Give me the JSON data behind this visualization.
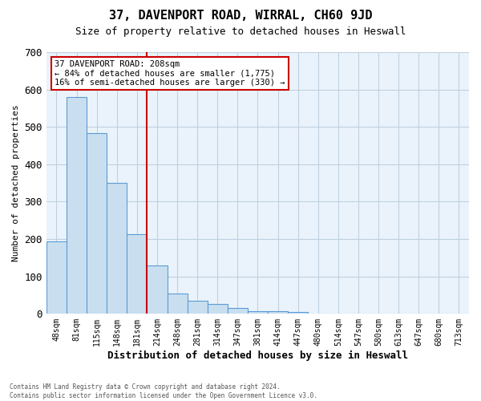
{
  "title": "37, DAVENPORT ROAD, WIRRAL, CH60 9JD",
  "subtitle": "Size of property relative to detached houses in Heswall",
  "xlabel": "Distribution of detached houses by size in Heswall",
  "ylabel": "Number of detached properties",
  "bin_labels": [
    "48sqm",
    "81sqm",
    "115sqm",
    "148sqm",
    "181sqm",
    "214sqm",
    "248sqm",
    "281sqm",
    "314sqm",
    "347sqm",
    "381sqm",
    "414sqm",
    "447sqm",
    "480sqm",
    "514sqm",
    "547sqm",
    "580sqm",
    "613sqm",
    "647sqm",
    "680sqm",
    "713sqm"
  ],
  "bar_heights": [
    193,
    580,
    483,
    350,
    213,
    130,
    55,
    35,
    27,
    15,
    8,
    8,
    5,
    0,
    0,
    0,
    0,
    0,
    0,
    0,
    0
  ],
  "bar_color": "#c9dff0",
  "bar_edge_color": "#5b9bd5",
  "annotation_text": "37 DAVENPORT ROAD: 208sqm\n← 84% of detached houses are smaller (1,775)\n16% of semi-detached houses are larger (330) →",
  "annotation_box_color": "#ffffff",
  "annotation_box_edge_color": "#cc0000",
  "vline_color": "#cc0000",
  "vline_x": 4.5,
  "ylim": [
    0,
    700
  ],
  "yticks": [
    0,
    100,
    200,
    300,
    400,
    500,
    600,
    700
  ],
  "grid_color": "#c0d0e0",
  "background_color": "#eaf3fb",
  "footnote": "Contains HM Land Registry data © Crown copyright and database right 2024.\nContains public sector information licensed under the Open Government Licence v3.0."
}
